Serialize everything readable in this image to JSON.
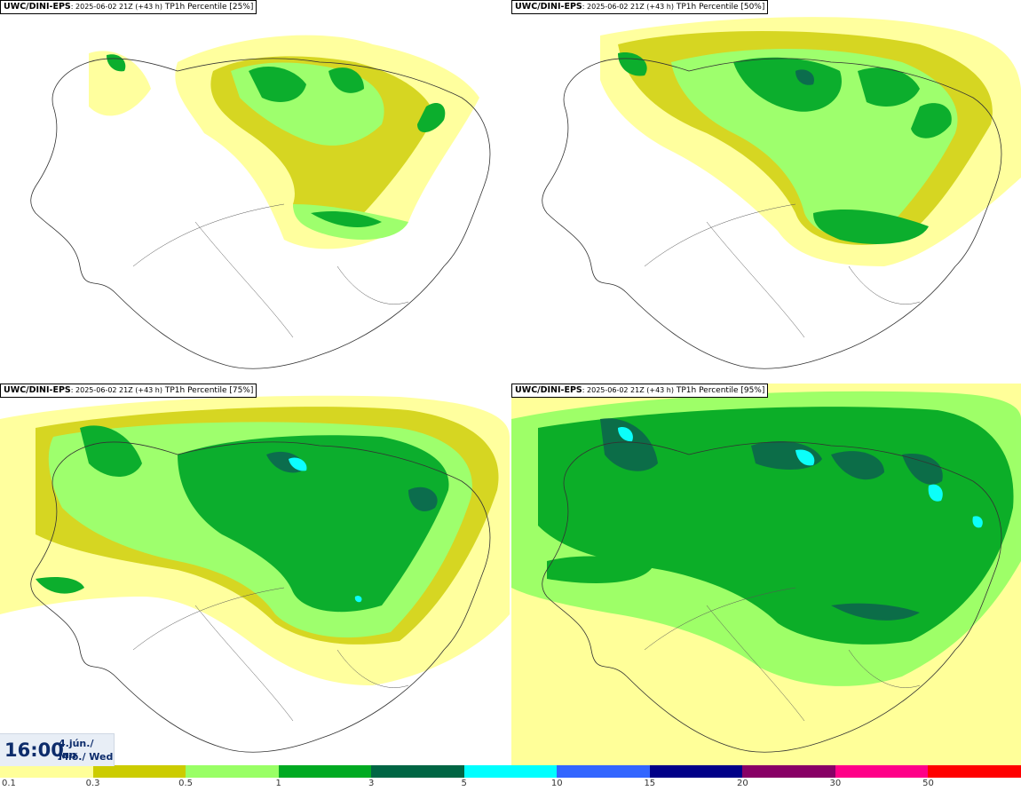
{
  "panels": [
    {
      "model": "UWC/DINI-EPS",
      "run": ": 2025-06-02 21Z (+43 h)",
      "field": " TP1h Percentile [25%]"
    },
    {
      "model": "UWC/DINI-EPS",
      "run": ": 2025-06-02 21Z (+43 h)",
      "field": " TP1h Percentile [50%]"
    },
    {
      "model": "UWC/DINI-EPS",
      "run": ": 2025-06-02 21Z (+43 h)",
      "field": " TP1h Percentile [75%]"
    },
    {
      "model": "UWC/DINI-EPS",
      "run": ": 2025-06-02 21Z (+43 h)",
      "field": " TP1h Percentile [95%]"
    }
  ],
  "valid_time": {
    "time": "16:00",
    "date_line1": "4.jún./ Jun",
    "date_line2": "Mið./ Wed"
  },
  "legend": {
    "colors": [
      "#ffff99",
      "#cccc00",
      "#99ff66",
      "#00aa22",
      "#006644",
      "#00ffff",
      "#3366ff",
      "#000088",
      "#880066",
      "#ff0088",
      "#ff0000"
    ],
    "ticks": [
      "0.1",
      "0.3",
      "0.5",
      "1",
      "3",
      "5",
      "10",
      "15",
      "20",
      "30",
      "50"
    ]
  },
  "palette": {
    "coast": "#333333",
    "land": "#ffffff",
    "title_border": "#000000"
  }
}
